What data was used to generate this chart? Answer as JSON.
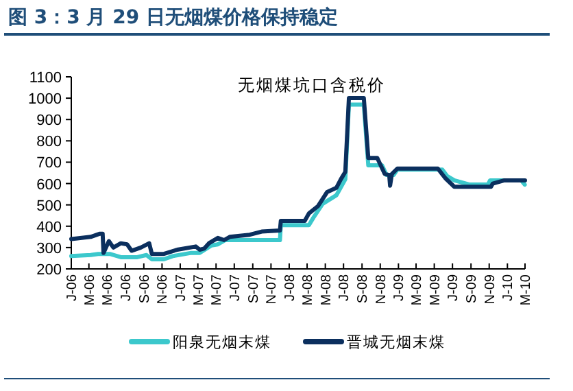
{
  "chart_data": {
    "type": "line",
    "title": "图 3：3 月 29 日无烟煤价格保持稳定",
    "subtitle": "无烟煤坑口含税价",
    "xlim": [
      "2006-01",
      "2010-03"
    ],
    "xticks": [
      {
        "value": "2006-01",
        "label": "J-06"
      },
      {
        "value": "2006-03",
        "label": "M-06"
      },
      {
        "value": "2006-05",
        "label": "M-06"
      },
      {
        "value": "2006-07",
        "label": "J-06"
      },
      {
        "value": "2006-09",
        "label": "S-06"
      },
      {
        "value": "2006-11",
        "label": "N-06"
      },
      {
        "value": "2007-01",
        "label": "J-07"
      },
      {
        "value": "2007-03",
        "label": "M-07"
      },
      {
        "value": "2007-05",
        "label": "M-07"
      },
      {
        "value": "2007-07",
        "label": "J-07"
      },
      {
        "value": "2007-09",
        "label": "S-07"
      },
      {
        "value": "2007-11",
        "label": "N-07"
      },
      {
        "value": "2008-01",
        "label": "J-08"
      },
      {
        "value": "2008-03",
        "label": "M-08"
      },
      {
        "value": "2008-05",
        "label": "M-08"
      },
      {
        "value": "2008-07",
        "label": "J-08"
      },
      {
        "value": "2008-09",
        "label": "S-08"
      },
      {
        "value": "2008-11",
        "label": "N-08"
      },
      {
        "value": "2009-01",
        "label": "J-09"
      },
      {
        "value": "2009-03",
        "label": "M-09"
      },
      {
        "value": "2009-05",
        "label": "M-09"
      },
      {
        "value": "2009-07",
        "label": "J-09"
      },
      {
        "value": "2009-09",
        "label": "S-09"
      },
      {
        "value": "2009-11",
        "label": "N-09"
      },
      {
        "value": "2010-01",
        "label": "J-10"
      },
      {
        "value": "2010-03",
        "label": "M-10"
      }
    ],
    "ylim": [
      200,
      1100
    ],
    "yticks": [
      200,
      300,
      400,
      500,
      600,
      700,
      800,
      900,
      1000,
      1100
    ],
    "grid": false,
    "legend": "bottom",
    "marker": "none",
    "line_style": "solid",
    "series": [
      {
        "name": "阳泉无烟末煤",
        "color": "#3cc8cc",
        "x": [
          "2006-01-01",
          "2006-03-07",
          "2006-04-01",
          "2006-05-10",
          "2006-06-16",
          "2006-08-10",
          "2006-09-10",
          "2006-09-28",
          "2006-11-07",
          "2006-12-07",
          "2007-02-07",
          "2007-03-07",
          "2007-04-16",
          "2007-05-07",
          "2007-06-01",
          "2007-12-01",
          "2007-12-04",
          "2008-03-07",
          "2008-03-22",
          "2008-04-22",
          "2008-06-07",
          "2008-07-07",
          "2008-07-19",
          "2008-09-07",
          "2008-09-22",
          "2008-11-07",
          "2008-11-22",
          "2008-12-16",
          "2008-12-28",
          "2009-05-28",
          "2009-06-13",
          "2009-07-07",
          "2009-08-28",
          "2009-10-28",
          "2009-11-04",
          "2010-02-16",
          "2010-02-28"
        ],
        "values": [
          260,
          265,
          270,
          270,
          255,
          255,
          265,
          245,
          245,
          260,
          275,
          275,
          310,
          315,
          335,
          335,
          405,
          405,
          440,
          505,
          545,
          620,
          970,
          970,
          685,
          685,
          640,
          640,
          665,
          665,
          635,
          615,
          595,
          595,
          615,
          615,
          595
        ]
      },
      {
        "name": "晋城无烟末煤",
        "color": "#0b2f5e",
        "x": [
          "2006-01-01",
          "2006-03-07",
          "2006-04-07",
          "2006-04-16",
          "2006-04-19",
          "2006-05-07",
          "2006-05-22",
          "2006-06-16",
          "2006-07-07",
          "2006-07-22",
          "2006-08-22",
          "2006-09-19",
          "2006-09-28",
          "2006-11-07",
          "2006-12-22",
          "2007-02-22",
          "2007-03-07",
          "2007-03-22",
          "2007-04-07",
          "2007-05-07",
          "2007-05-28",
          "2007-06-16",
          "2007-08-22",
          "2007-10-01",
          "2007-12-01",
          "2007-12-04",
          "2008-02-22",
          "2008-03-07",
          "2008-04-07",
          "2008-05-07",
          "2008-06-07",
          "2008-06-22",
          "2008-07-07",
          "2008-07-19",
          "2008-09-07",
          "2008-09-22",
          "2008-10-22",
          "2008-11-16",
          "2008-12-01",
          "2008-12-04",
          "2008-12-10",
          "2008-12-28",
          "2009-05-13",
          "2009-06-07",
          "2009-07-07",
          "2009-11-07",
          "2009-11-13",
          "2009-12-22",
          "2010-03-01"
        ],
        "values": [
          340,
          350,
          365,
          365,
          275,
          330,
          300,
          320,
          315,
          285,
          300,
          320,
          270,
          270,
          290,
          305,
          290,
          295,
          320,
          345,
          335,
          350,
          360,
          375,
          380,
          425,
          425,
          460,
          495,
          560,
          580,
          620,
          655,
          1000,
          1000,
          720,
          720,
          645,
          640,
          590,
          645,
          670,
          670,
          625,
          585,
          585,
          600,
          615,
          615
        ]
      }
    ]
  }
}
